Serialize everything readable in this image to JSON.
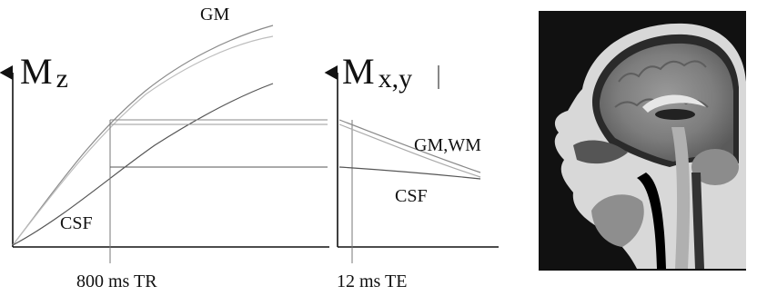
{
  "left_plot": {
    "axis_label_main": "M",
    "axis_label_sub": "z",
    "curve_label_gm": "GM",
    "curve_label_csf": "CSF",
    "x_marker_label": "800 ms TR"
  },
  "right_plot": {
    "axis_label_main": "M",
    "axis_label_sub": "x,y",
    "curve_label_gm_wm": "GM,WM",
    "curve_label_csf": "CSF",
    "x_marker_label": "12 ms TE"
  },
  "colors": {
    "axis": "#111111",
    "gm_curve": "#8a8a8a",
    "wm_curve": "#b5b5b5",
    "csf_curve": "#555555",
    "image_background": "#111111"
  },
  "image": {
    "icon": "brain-mri-sagittal-icon"
  }
}
